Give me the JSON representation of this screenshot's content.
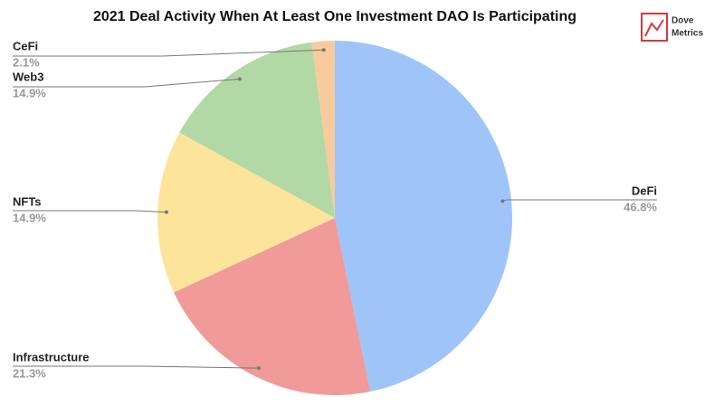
{
  "chart_data": {
    "type": "pie",
    "title": "2021 Deal Activity When At Least One Investment DAO Is Participating",
    "categories": [
      "DeFi",
      "Infrastructure",
      "NFTs",
      "Web3",
      "CeFi"
    ],
    "values": [
      46.8,
      21.3,
      14.9,
      14.9,
      2.1
    ],
    "value_labels": [
      "46.8%",
      "21.3%",
      "14.9%",
      "14.9%",
      "2.1%"
    ],
    "colors": [
      "#9fc5f8",
      "#f09a99",
      "#fde49b",
      "#b2d8a5",
      "#f8cb9d"
    ]
  },
  "logo": {
    "line1": "Dove",
    "line2": "Metrics"
  }
}
